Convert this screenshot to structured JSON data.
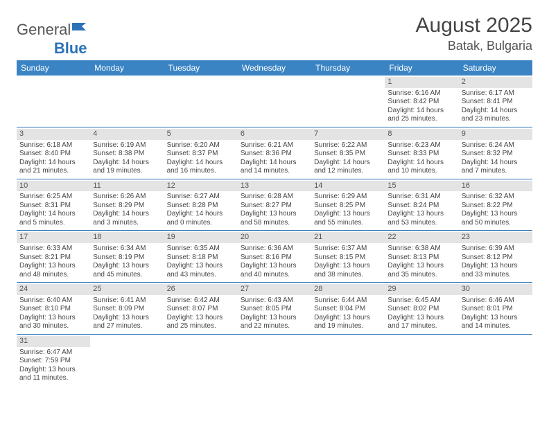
{
  "logo": {
    "part1": "General",
    "part2": "Blue"
  },
  "title": "August 2025",
  "location": "Batak, Bulgaria",
  "colors": {
    "header_bg": "#3b84c4",
    "header_fg": "#ffffff",
    "rule": "#2b72b8",
    "daybar": "#e4e4e4",
    "text": "#444444"
  },
  "weekdays": [
    "Sunday",
    "Monday",
    "Tuesday",
    "Wednesday",
    "Thursday",
    "Friday",
    "Saturday"
  ],
  "weeks": [
    [
      null,
      null,
      null,
      null,
      null,
      {
        "d": "1",
        "sr": "6:16 AM",
        "ss": "8:42 PM",
        "dl": "14 hours and 25 minutes."
      },
      {
        "d": "2",
        "sr": "6:17 AM",
        "ss": "8:41 PM",
        "dl": "14 hours and 23 minutes."
      }
    ],
    [
      {
        "d": "3",
        "sr": "6:18 AM",
        "ss": "8:40 PM",
        "dl": "14 hours and 21 minutes."
      },
      {
        "d": "4",
        "sr": "6:19 AM",
        "ss": "8:38 PM",
        "dl": "14 hours and 19 minutes."
      },
      {
        "d": "5",
        "sr": "6:20 AM",
        "ss": "8:37 PM",
        "dl": "14 hours and 16 minutes."
      },
      {
        "d": "6",
        "sr": "6:21 AM",
        "ss": "8:36 PM",
        "dl": "14 hours and 14 minutes."
      },
      {
        "d": "7",
        "sr": "6:22 AM",
        "ss": "8:35 PM",
        "dl": "14 hours and 12 minutes."
      },
      {
        "d": "8",
        "sr": "6:23 AM",
        "ss": "8:33 PM",
        "dl": "14 hours and 10 minutes."
      },
      {
        "d": "9",
        "sr": "6:24 AM",
        "ss": "8:32 PM",
        "dl": "14 hours and 7 minutes."
      }
    ],
    [
      {
        "d": "10",
        "sr": "6:25 AM",
        "ss": "8:31 PM",
        "dl": "14 hours and 5 minutes."
      },
      {
        "d": "11",
        "sr": "6:26 AM",
        "ss": "8:29 PM",
        "dl": "14 hours and 3 minutes."
      },
      {
        "d": "12",
        "sr": "6:27 AM",
        "ss": "8:28 PM",
        "dl": "14 hours and 0 minutes."
      },
      {
        "d": "13",
        "sr": "6:28 AM",
        "ss": "8:27 PM",
        "dl": "13 hours and 58 minutes."
      },
      {
        "d": "14",
        "sr": "6:29 AM",
        "ss": "8:25 PM",
        "dl": "13 hours and 55 minutes."
      },
      {
        "d": "15",
        "sr": "6:31 AM",
        "ss": "8:24 PM",
        "dl": "13 hours and 53 minutes."
      },
      {
        "d": "16",
        "sr": "6:32 AM",
        "ss": "8:22 PM",
        "dl": "13 hours and 50 minutes."
      }
    ],
    [
      {
        "d": "17",
        "sr": "6:33 AM",
        "ss": "8:21 PM",
        "dl": "13 hours and 48 minutes."
      },
      {
        "d": "18",
        "sr": "6:34 AM",
        "ss": "8:19 PM",
        "dl": "13 hours and 45 minutes."
      },
      {
        "d": "19",
        "sr": "6:35 AM",
        "ss": "8:18 PM",
        "dl": "13 hours and 43 minutes."
      },
      {
        "d": "20",
        "sr": "6:36 AM",
        "ss": "8:16 PM",
        "dl": "13 hours and 40 minutes."
      },
      {
        "d": "21",
        "sr": "6:37 AM",
        "ss": "8:15 PM",
        "dl": "13 hours and 38 minutes."
      },
      {
        "d": "22",
        "sr": "6:38 AM",
        "ss": "8:13 PM",
        "dl": "13 hours and 35 minutes."
      },
      {
        "d": "23",
        "sr": "6:39 AM",
        "ss": "8:12 PM",
        "dl": "13 hours and 33 minutes."
      }
    ],
    [
      {
        "d": "24",
        "sr": "6:40 AM",
        "ss": "8:10 PM",
        "dl": "13 hours and 30 minutes."
      },
      {
        "d": "25",
        "sr": "6:41 AM",
        "ss": "8:09 PM",
        "dl": "13 hours and 27 minutes."
      },
      {
        "d": "26",
        "sr": "6:42 AM",
        "ss": "8:07 PM",
        "dl": "13 hours and 25 minutes."
      },
      {
        "d": "27",
        "sr": "6:43 AM",
        "ss": "8:05 PM",
        "dl": "13 hours and 22 minutes."
      },
      {
        "d": "28",
        "sr": "6:44 AM",
        "ss": "8:04 PM",
        "dl": "13 hours and 19 minutes."
      },
      {
        "d": "29",
        "sr": "6:45 AM",
        "ss": "8:02 PM",
        "dl": "13 hours and 17 minutes."
      },
      {
        "d": "30",
        "sr": "6:46 AM",
        "ss": "8:01 PM",
        "dl": "13 hours and 14 minutes."
      }
    ],
    [
      {
        "d": "31",
        "sr": "6:47 AM",
        "ss": "7:59 PM",
        "dl": "13 hours and 11 minutes."
      },
      null,
      null,
      null,
      null,
      null,
      null
    ]
  ],
  "labels": {
    "sunrise": "Sunrise: ",
    "sunset": "Sunset: ",
    "daylight": "Daylight: "
  }
}
